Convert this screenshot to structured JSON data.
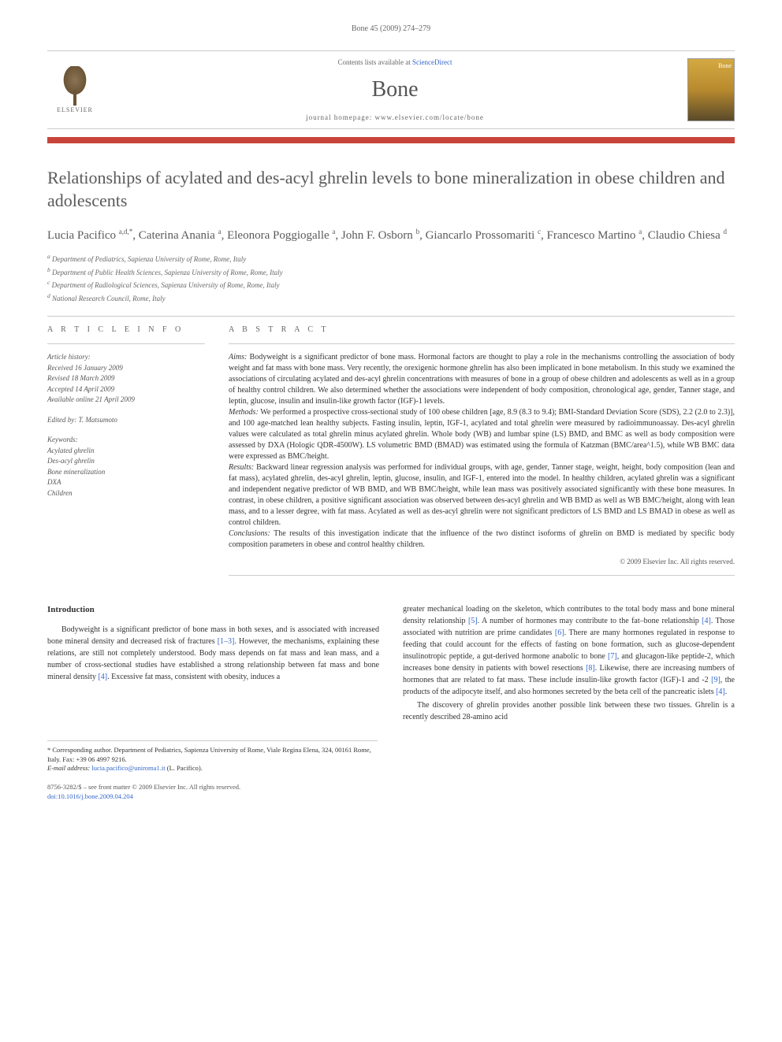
{
  "header": {
    "citation": "Bone 45 (2009) 274–279"
  },
  "banner": {
    "elsevier": "ELSEVIER",
    "contents_text": "Contents lists available at ",
    "sd_text": "ScienceDirect",
    "journal_name": "Bone",
    "homepage_label": "journal homepage: ",
    "homepage_url": "www.elsevier.com/locate/bone",
    "cover_text": "Bone"
  },
  "article": {
    "title": "Relationships of acylated and des-acyl ghrelin levels to bone mineralization in obese children and adolescents",
    "authors_html": "Lucia Pacifico <sup>a,d,*</sup>, Caterina Anania <sup>a</sup>, Eleonora Poggiogalle <sup>a</sup>, John F. Osborn <sup>b</sup>, Giancarlo Prossomariti <sup>c</sup>, Francesco Martino <sup>a</sup>, Claudio Chiesa <sup>d</sup>",
    "affiliations": {
      "a": "Department of Pediatrics, Sapienza University of Rome, Rome, Italy",
      "b": "Department of Public Health Sciences, Sapienza University of Rome, Rome, Italy",
      "c": "Department of Radiological Sciences, Sapienza University of Rome, Rome, Italy",
      "d": "National Research Council, Rome, Italy"
    }
  },
  "info": {
    "heading": "A R T I C L E   I N F O",
    "history_label": "Article history:",
    "received": "Received 16 January 2009",
    "revised": "Revised 18 March 2009",
    "accepted": "Accepted 14 April 2009",
    "online": "Available online 21 April 2009",
    "edited_by": "Edited by: T. Matsumoto",
    "keywords_label": "Keywords:",
    "keywords": [
      "Acylated ghrelin",
      "Des-acyl ghrelin",
      "Bone mineralization",
      "DXA",
      "Children"
    ]
  },
  "abstract": {
    "heading": "A B S T R A C T",
    "aims_label": "Aims:",
    "aims": "Bodyweight is a significant predictor of bone mass. Hormonal factors are thought to play a role in the mechanisms controlling the association of body weight and fat mass with bone mass. Very recently, the orexigenic hormone ghrelin has also been implicated in bone metabolism. In this study we examined the associations of circulating acylated and des-acyl ghrelin concentrations with measures of bone in a group of obese children and adolescents as well as in a group of healthy control children. We also determined whether the associations were independent of body composition, chronological age, gender, Tanner stage, and leptin, glucose, insulin and insulin-like growth factor (IGF)-1 levels.",
    "methods_label": "Methods:",
    "methods": "We performed a prospective cross-sectional study of 100 obese children [age, 8.9 (8.3 to 9.4); BMI-Standard Deviation Score (SDS), 2.2 (2.0 to 2.3)], and 100 age-matched lean healthy subjects. Fasting insulin, leptin, IGF-1, acylated and total ghrelin were measured by radioimmunoassay. Des-acyl ghrelin values were calculated as total ghrelin minus acylated ghrelin. Whole body (WB) and lumbar spine (LS) BMD, and BMC as well as body composition were assessed by DXA (Hologic QDR-4500W). LS volumetric BMD (BMAD) was estimated using the formula of Katzman (BMC/area^1.5), while WB BMC data were expressed as BMC/height.",
    "results_label": "Results:",
    "results": "Backward linear regression analysis was performed for individual groups, with age, gender, Tanner stage, weight, height, body composition (lean and fat mass), acylated ghrelin, des-acyl ghrelin, leptin, glucose, insulin, and IGF-1, entered into the model. In healthy children, acylated ghrelin was a significant and independent negative predictor of WB BMD, and WB BMC/height, while lean mass was positively associated significantly with these bone measures. In contrast, in obese children, a positive significant association was observed between des-acyl ghrelin and WB BMD as well as WB BMC/height, along with lean mass, and to a lesser degree, with fat mass. Acylated as well as des-acyl ghrelin were not significant predictors of LS BMD and LS BMAD in obese as well as control children.",
    "conclusions_label": "Conclusions:",
    "conclusions": "The results of this investigation indicate that the influence of the two distinct isoforms of ghrelin on BMD is mediated by specific body composition parameters in obese and control healthy children.",
    "copyright": "© 2009 Elsevier Inc. All rights reserved."
  },
  "body": {
    "intro_heading": "Introduction",
    "intro_p1": "Bodyweight is a significant predictor of bone mass in both sexes, and is associated with increased bone mineral density and decreased risk of fractures [1–3]. However, the mechanisms, explaining these relations, are still not completely understood. Body mass depends on fat mass and lean mass, and a number of cross-sectional studies have established a strong relationship between fat mass and bone mineral density [4]. Excessive fat mass, consistent with obesity, induces a",
    "intro_p2": "greater mechanical loading on the skeleton, which contributes to the total body mass and bone mineral density relationship [5]. A number of hormones may contribute to the fat–bone relationship [4]. Those associated with nutrition are prime candidates [6]. There are many hormones regulated in response to feeding that could account for the effects of fasting on bone formation, such as glucose-dependent insulinotropic peptide, a gut-derived hormone anabolic to bone [7], and glucagon-like peptide-2, which increases bone density in patients with bowel resections [8]. Likewise, there are increasing numbers of hormones that are related to fat mass. These include insulin-like growth factor (IGF)-1 and -2 [9], the products of the adipocyte itself, and also hormones secreted by the beta cell of the pancreatic islets [4].",
    "intro_p3": "The discovery of ghrelin provides another possible link between these two tissues. Ghrelin is a recently described 28-amino acid"
  },
  "footnotes": {
    "corresponding": "* Corresponding author. Department of Pediatrics, Sapienza University of Rome, Viale Regina Elena, 324, 00161 Rome, Italy. Fax: +39 06 4997 9216.",
    "email_label": "E-mail address:",
    "email": "lucia.pacifico@uniroma1.it",
    "email_author": "(L. Pacifico)."
  },
  "footer": {
    "issn": "8756-3282/$ – see front matter © 2009 Elsevier Inc. All rights reserved.",
    "doi": "doi:10.1016/j.bone.2009.04.204"
  },
  "colors": {
    "bar": "#c8443a",
    "link": "#3366cc",
    "text": "#333333",
    "muted": "#666666"
  }
}
